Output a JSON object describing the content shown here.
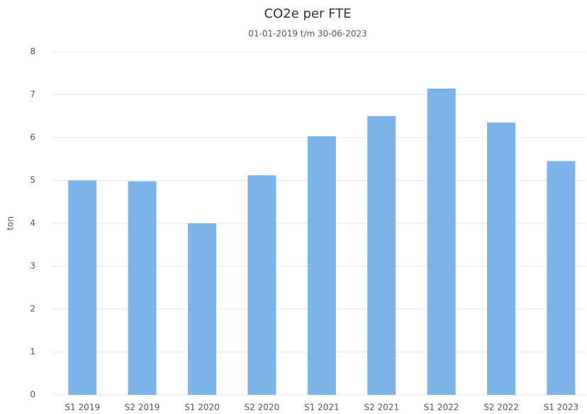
{
  "chart_data": {
    "type": "bar",
    "title": "CO2e per FTE",
    "subtitle": "01-01-2019 t/m 30-06-2023",
    "y_label": "ton",
    "categories": [
      "S1 2019",
      "S2 2019",
      "S1 2020",
      "S2 2020",
      "S1 2021",
      "S2 2021",
      "S1 2022",
      "S2 2022",
      "S1 2023"
    ],
    "values": [
      5.0,
      4.98,
      4.0,
      5.12,
      6.03,
      6.5,
      7.14,
      6.35,
      5.45
    ],
    "color": "#7cb4ea",
    "ylim": [
      0,
      8
    ],
    "yticks": [
      0,
      1,
      2,
      3,
      4,
      5,
      6,
      7,
      8
    ],
    "grid": true
  }
}
